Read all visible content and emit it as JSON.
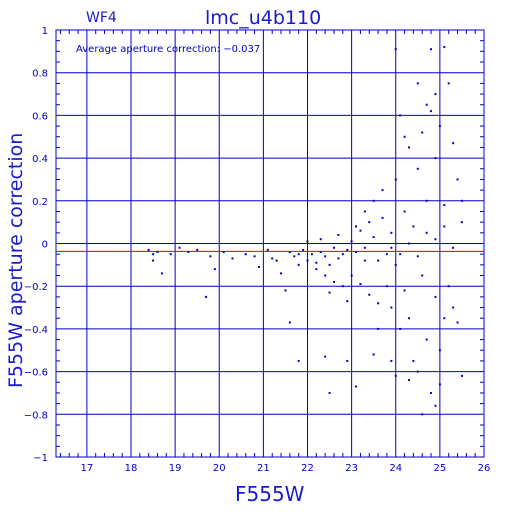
{
  "chart_data": {
    "type": "scatter",
    "title": "lmc_u4b110",
    "subtitle": "WF4",
    "xlabel": "F555W",
    "ylabel": "F555W aperture correction",
    "annotation": "Average aperture correction: −0.037",
    "average_correction": -0.037,
    "xlim": [
      16.3,
      26
    ],
    "ylim": [
      -1,
      1
    ],
    "x_ticks": [
      "17",
      "18",
      "19",
      "20",
      "21",
      "22",
      "23",
      "24",
      "25",
      "26"
    ],
    "y_ticks": [
      "1",
      "0.8",
      "0.6",
      "0.4",
      "0.2",
      "0",
      "−0.2",
      "−0.4",
      "−0.6",
      "−0.8",
      "−1"
    ],
    "grid": true,
    "colors": {
      "axes": "#0000cc",
      "points": "#0000cc",
      "mean_line": "#dd0000",
      "title": "#1a1ad0"
    },
    "points": [
      [
        18.4,
        -0.03
      ],
      [
        18.5,
        -0.05
      ],
      [
        18.6,
        -0.04
      ],
      [
        18.7,
        -0.14
      ],
      [
        18.5,
        -0.08
      ],
      [
        18.9,
        -0.05
      ],
      [
        19.1,
        -0.02
      ],
      [
        19.3,
        -0.04
      ],
      [
        19.5,
        -0.03
      ],
      [
        19.8,
        -0.06
      ],
      [
        19.9,
        -0.12
      ],
      [
        19.7,
        -0.25
      ],
      [
        20.1,
        -0.04
      ],
      [
        20.3,
        -0.07
      ],
      [
        20.6,
        -0.05
      ],
      [
        20.8,
        -0.06
      ],
      [
        20.9,
        -0.11
      ],
      [
        21.1,
        -0.03
      ],
      [
        21.2,
        -0.07
      ],
      [
        21.3,
        -0.08
      ],
      [
        21.4,
        -0.14
      ],
      [
        21.5,
        -0.22
      ],
      [
        21.6,
        -0.04
      ],
      [
        21.7,
        -0.06
      ],
      [
        21.8,
        -0.05
      ],
      [
        21.9,
        -0.03
      ],
      [
        22.0,
        -0.08
      ],
      [
        22.1,
        -0.05
      ],
      [
        22.2,
        -0.09
      ],
      [
        22.3,
        -0.04
      ],
      [
        22.4,
        -0.06
      ],
      [
        22.5,
        -0.1
      ],
      [
        22.6,
        -0.02
      ],
      [
        22.7,
        -0.07
      ],
      [
        22.8,
        -0.05
      ],
      [
        22.9,
        -0.03
      ],
      [
        22.2,
        -0.12
      ],
      [
        22.4,
        -0.15
      ],
      [
        22.6,
        -0.18
      ],
      [
        22.8,
        -0.2
      ],
      [
        22.5,
        -0.23
      ],
      [
        22.9,
        -0.27
      ],
      [
        21.8,
        -0.1
      ],
      [
        22.0,
        0.01
      ],
      [
        22.3,
        0.02
      ],
      [
        22.7,
        0.04
      ],
      [
        23.0,
        0.01
      ],
      [
        23.1,
        -0.04
      ],
      [
        23.2,
        0.06
      ],
      [
        23.3,
        -0.02
      ],
      [
        23.4,
        0.1
      ],
      [
        23.5,
        0.03
      ],
      [
        23.6,
        -0.08
      ],
      [
        23.7,
        0.12
      ],
      [
        23.8,
        -0.05
      ],
      [
        23.9,
        0.05
      ],
      [
        23.0,
        -0.15
      ],
      [
        23.2,
        -0.19
      ],
      [
        23.4,
        -0.24
      ],
      [
        23.6,
        -0.28
      ],
      [
        23.3,
        0.15
      ],
      [
        23.5,
        0.2
      ],
      [
        23.7,
        0.25
      ],
      [
        23.1,
        0.08
      ],
      [
        23.8,
        -0.2
      ],
      [
        23.9,
        -0.3
      ],
      [
        24.0,
        0.3
      ],
      [
        24.0,
        -0.1
      ],
      [
        24.1,
        0.6
      ],
      [
        24.1,
        -0.4
      ],
      [
        24.2,
        0.15
      ],
      [
        24.2,
        -0.22
      ],
      [
        24.3,
        0.45
      ],
      [
        24.3,
        -0.35
      ],
      [
        24.4,
        0.08
      ],
      [
        24.4,
        -0.55
      ],
      [
        24.5,
        0.35
      ],
      [
        24.5,
        -0.6
      ],
      [
        24.6,
        0.52
      ],
      [
        24.6,
        -0.15
      ],
      [
        24.7,
        0.2
      ],
      [
        24.7,
        -0.45
      ],
      [
        24.8,
        0.62
      ],
      [
        24.8,
        -0.7
      ],
      [
        24.9,
        0.4
      ],
      [
        24.9,
        -0.25
      ],
      [
        25.0,
        0.55
      ],
      [
        25.0,
        -0.5
      ],
      [
        25.1,
        0.18
      ],
      [
        25.1,
        -0.35
      ],
      [
        25.2,
        0.75
      ],
      [
        25.2,
        -0.2
      ],
      [
        25.3,
        0.47
      ],
      [
        25.3,
        -0.3
      ],
      [
        25.4,
        0.3
      ],
      [
        25.4,
        -0.37
      ],
      [
        25.5,
        0.2
      ],
      [
        25.5,
        -0.62
      ],
      [
        24.0,
        0.91
      ],
      [
        24.8,
        0.91
      ],
      [
        25.1,
        0.92
      ],
      [
        24.9,
        0.7
      ],
      [
        24.5,
        0.75
      ],
      [
        24.2,
        0.5
      ],
      [
        24.7,
        0.65
      ],
      [
        23.9,
        -0.55
      ],
      [
        24.0,
        -0.62
      ],
      [
        24.3,
        -0.64
      ],
      [
        24.6,
        -0.8
      ],
      [
        24.9,
        -0.76
      ],
      [
        25.0,
        -0.66
      ],
      [
        22.5,
        -0.7
      ],
      [
        23.1,
        -0.67
      ],
      [
        21.8,
        -0.55
      ],
      [
        22.4,
        -0.53
      ],
      [
        21.6,
        -0.37
      ],
      [
        22.9,
        -0.55
      ],
      [
        23.5,
        -0.52
      ],
      [
        23.6,
        -0.4
      ],
      [
        23.3,
        -0.08
      ],
      [
        23.9,
        -0.02
      ],
      [
        24.1,
        -0.05
      ],
      [
        24.3,
        0.0
      ],
      [
        24.5,
        -0.06
      ],
      [
        24.7,
        0.05
      ],
      [
        24.9,
        0.02
      ],
      [
        25.1,
        0.08
      ],
      [
        25.3,
        -0.02
      ],
      [
        25.5,
        0.1
      ]
    ]
  }
}
